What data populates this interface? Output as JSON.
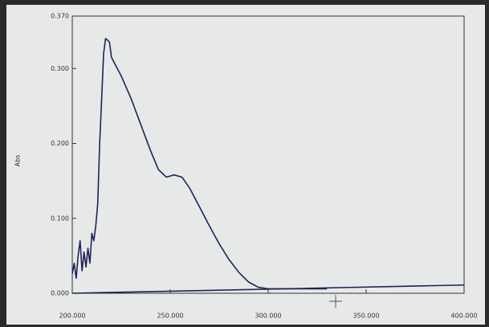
{
  "chart_data": {
    "type": "line",
    "y_label": "Abs",
    "xlim": [
      200,
      400
    ],
    "ylim": [
      0,
      0.37
    ],
    "xticks": [
      {
        "value": 200,
        "label": "200.000"
      },
      {
        "value": 250,
        "label": "250.000"
      },
      {
        "value": 300,
        "label": "300.000"
      },
      {
        "value": 350,
        "label": "350.000"
      },
      {
        "value": 400,
        "label": "400.000"
      }
    ],
    "yticks": [
      {
        "value": 0,
        "label": "0.000"
      },
      {
        "value": 0.1,
        "label": "0.100"
      },
      {
        "value": 0.2,
        "label": "0.200"
      },
      {
        "value": 0.3,
        "label": "0.300"
      },
      {
        "value": 0.37,
        "label": "0.370"
      }
    ],
    "series": [
      {
        "color": "#1e2456",
        "x": [
          200,
          201,
          202,
          203,
          204,
          205,
          206,
          207,
          208,
          209,
          210,
          211,
          212,
          213,
          214,
          215,
          216,
          217,
          218,
          219,
          220,
          222,
          225,
          230,
          235,
          240,
          244,
          248,
          252,
          256,
          260,
          265,
          270,
          275,
          280,
          285,
          290,
          295,
          300,
          310,
          320,
          330
        ],
        "values": [
          0.026,
          0.04,
          0.02,
          0.05,
          0.07,
          0.03,
          0.055,
          0.035,
          0.06,
          0.04,
          0.08,
          0.07,
          0.09,
          0.12,
          0.2,
          0.26,
          0.32,
          0.34,
          0.338,
          0.335,
          0.315,
          0.305,
          0.29,
          0.26,
          0.225,
          0.19,
          0.165,
          0.155,
          0.158,
          0.155,
          0.14,
          0.115,
          0.09,
          0.066,
          0.045,
          0.028,
          0.015,
          0.008,
          0.006,
          0.006,
          0.006,
          0.006
        ]
      },
      {
        "color": "#1e2456",
        "x": [
          200,
          400
        ],
        "values": [
          0.0,
          0.011
        ]
      }
    ]
  }
}
